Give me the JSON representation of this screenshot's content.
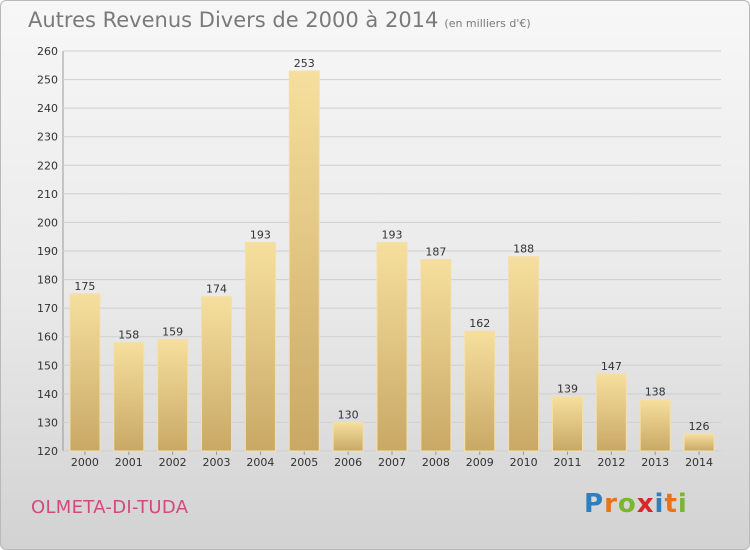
{
  "title": "Autres Revenus Divers de 2000 à 2014",
  "unit": "(en milliers d'€)",
  "town": "OLMETA-DI-TUDA",
  "brand": {
    "letters": [
      "P",
      "r",
      "o",
      "x",
      "i",
      "t",
      "i"
    ],
    "colors": [
      "#2d7fc1",
      "#e8731a",
      "#7cb530",
      "#d8262b",
      "#2d7fc1",
      "#e8731a",
      "#7cb530"
    ]
  },
  "colors": {
    "bar_light": "#f6df9e",
    "bar_dark": "#c9a865",
    "grid": "#cfcfcf"
  },
  "chart_data": {
    "type": "bar",
    "categories": [
      "2000",
      "2001",
      "2002",
      "2003",
      "2004",
      "2005",
      "2006",
      "2007",
      "2008",
      "2009",
      "2010",
      "2011",
      "2012",
      "2013",
      "2014"
    ],
    "values": [
      175,
      158,
      159,
      174,
      193,
      253,
      130,
      193,
      187,
      162,
      188,
      139,
      147,
      138,
      126
    ],
    "ylim": [
      120,
      260
    ],
    "yticks": [
      120,
      130,
      140,
      150,
      160,
      170,
      180,
      190,
      200,
      210,
      220,
      230,
      240,
      250,
      260
    ],
    "grid": true
  }
}
